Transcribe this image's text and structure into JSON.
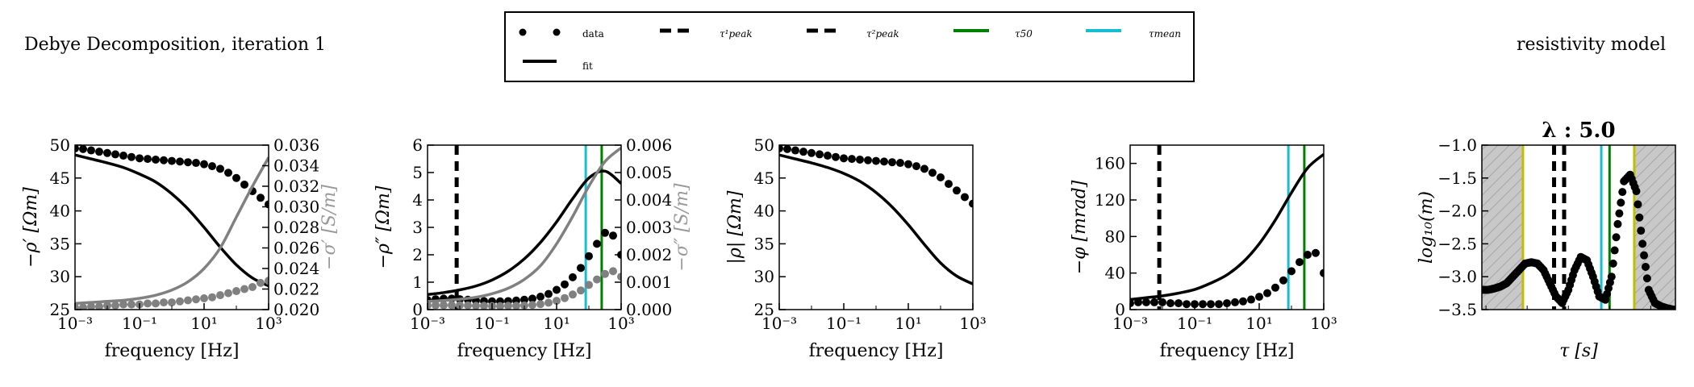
{
  "figure": {
    "left_title": "Debye Decomposition, iteration 1",
    "right_title": "resistivity model",
    "colors": {
      "data": "#000000",
      "data_gray": "#808080",
      "fit_gray": "#808080",
      "tau50": "#008000",
      "taumean": "#17becf",
      "yellow": "#bfbf00",
      "hatch": "#c8c8c8"
    }
  },
  "legend": {
    "items": [
      {
        "label": "data",
        "marker": "dots"
      },
      {
        "label": "τ¹peak",
        "marker": "dashed-black"
      },
      {
        "label": "τ²peak",
        "marker": "dashed-black"
      },
      {
        "label": "τ50",
        "marker": "green-line"
      },
      {
        "label": "τmean",
        "marker": "cyan-line"
      },
      {
        "label": "fit",
        "marker": "black-line"
      }
    ]
  },
  "chart_data": [
    {
      "type": "line",
      "xlabel": "frequency [Hz]",
      "ylabel": "−ρ′ [Ωm]",
      "y2label": "−σ′ [S/m]",
      "xscale": "log",
      "xlim": [
        0.001,
        1000
      ],
      "ylim": [
        25,
        50
      ],
      "y2lim": [
        0.02,
        0.036
      ],
      "xticks": [
        "10⁻³",
        "10⁻¹",
        "10¹",
        "10³"
      ],
      "yticks": [
        "25",
        "30",
        "35",
        "40",
        "45",
        "50"
      ],
      "y2ticks": [
        "0.020",
        "0.022",
        "0.024",
        "0.026",
        "0.028",
        "0.030",
        "0.032",
        "0.034",
        "0.036"
      ],
      "series": [
        {
          "name": "data",
          "axis": "left",
          "style": "dots",
          "color": "#000000",
          "x": [
            0.001,
            0.00178,
            0.00316,
            0.00562,
            0.01,
            0.0178,
            0.0316,
            0.0562,
            0.1,
            0.178,
            0.316,
            0.562,
            1,
            1.78,
            3.16,
            5.62,
            10,
            17.8,
            31.6,
            56.2,
            100,
            178,
            316,
            562,
            1000
          ],
          "y": [
            49.5,
            49.4,
            49.2,
            49.0,
            48.8,
            48.6,
            48.4,
            48.2,
            48.0,
            47.9,
            47.8,
            47.7,
            47.6,
            47.5,
            47.4,
            47.3,
            47.1,
            46.8,
            46.4,
            45.8,
            45.0,
            44.0,
            43.0,
            42.0,
            41.0
          ]
        },
        {
          "name": "fit",
          "axis": "left",
          "style": "line",
          "color": "#000000",
          "x": [
            0.001,
            0.00316,
            0.01,
            0.0316,
            0.1,
            0.316,
            1,
            3.16,
            10,
            31.6,
            100,
            316,
            1000
          ],
          "y": [
            48.5,
            47.9,
            47.3,
            46.6,
            45.6,
            44.4,
            42.6,
            40.3,
            37.5,
            34.5,
            31.8,
            29.8,
            28.6
          ]
        },
        {
          "name": "data-σ",
          "axis": "right",
          "style": "dots",
          "color": "#808080",
          "x": [
            0.001,
            0.00178,
            0.00316,
            0.00562,
            0.01,
            0.0178,
            0.0316,
            0.0562,
            0.1,
            0.178,
            0.316,
            0.562,
            1,
            1.78,
            3.16,
            5.62,
            10,
            17.8,
            31.6,
            56.2,
            100,
            178,
            316,
            562,
            1000
          ],
          "y": [
            0.0202,
            0.0202,
            0.0203,
            0.0203,
            0.0204,
            0.0204,
            0.0205,
            0.0205,
            0.0205,
            0.0206,
            0.0206,
            0.0207,
            0.0207,
            0.0208,
            0.0209,
            0.021,
            0.0211,
            0.0212,
            0.0214,
            0.0216,
            0.0218,
            0.022,
            0.0222,
            0.0226,
            0.0228
          ]
        },
        {
          "name": "fit-σ",
          "axis": "right",
          "style": "line",
          "color": "#808080",
          "x": [
            0.001,
            0.00316,
            0.01,
            0.0316,
            0.1,
            0.316,
            1,
            3.16,
            10,
            31.6,
            100,
            316,
            1000
          ],
          "y": [
            0.0206,
            0.0207,
            0.0208,
            0.0209,
            0.0211,
            0.0214,
            0.0219,
            0.0227,
            0.024,
            0.026,
            0.029,
            0.032,
            0.0348
          ]
        }
      ],
      "vlines": []
    },
    {
      "type": "line",
      "xlabel": "frequency [Hz]",
      "ylabel": "−ρ″ [Ωm]",
      "y2label": "−σ″ [S/m]",
      "xscale": "log",
      "xlim": [
        0.001,
        1000
      ],
      "ylim": [
        0,
        6
      ],
      "y2lim": [
        0,
        0.006
      ],
      "xticks": [
        "10⁻³",
        "10⁻¹",
        "10¹",
        "10³"
      ],
      "yticks": [
        "0",
        "1",
        "2",
        "3",
        "4",
        "5",
        "6"
      ],
      "y2ticks": [
        "0.000",
        "0.001",
        "0.002",
        "0.003",
        "0.004",
        "0.005",
        "0.006"
      ],
      "series": [
        {
          "name": "data",
          "axis": "left",
          "style": "dots",
          "color": "#000000",
          "x": [
            0.001,
            0.00178,
            0.00316,
            0.00562,
            0.01,
            0.0178,
            0.0316,
            0.0562,
            0.1,
            0.178,
            0.316,
            0.562,
            1,
            1.78,
            3.16,
            5.62,
            10,
            17.8,
            31.6,
            56.2,
            100,
            178,
            316,
            562,
            1000
          ],
          "y": [
            0.35,
            0.38,
            0.4,
            0.4,
            0.38,
            0.36,
            0.33,
            0.31,
            0.3,
            0.3,
            0.31,
            0.33,
            0.36,
            0.4,
            0.47,
            0.57,
            0.72,
            0.92,
            1.18,
            1.52,
            1.95,
            2.4,
            2.8,
            2.7,
            2.0
          ]
        },
        {
          "name": "fit",
          "axis": "left",
          "style": "line",
          "color": "#000000",
          "x": [
            0.001,
            0.00316,
            0.01,
            0.0316,
            0.1,
            0.316,
            1,
            3.16,
            10,
            31.6,
            100,
            316,
            1000
          ],
          "y": [
            0.55,
            0.62,
            0.72,
            0.86,
            1.08,
            1.4,
            1.85,
            2.45,
            3.2,
            4.05,
            4.8,
            5.05,
            4.6
          ]
        },
        {
          "name": "data-σ",
          "axis": "right",
          "style": "dots",
          "color": "#808080",
          "x": [
            0.001,
            0.00178,
            0.00316,
            0.00562,
            0.01,
            0.0178,
            0.0316,
            0.0562,
            0.1,
            0.178,
            0.316,
            0.562,
            1,
            1.78,
            3.16,
            5.62,
            10,
            17.8,
            31.6,
            56.2,
            100,
            178,
            316,
            562,
            1000
          ],
          "y": [
            0.00015,
            0.00016,
            0.00016,
            0.00016,
            0.00016,
            0.00015,
            0.00014,
            0.00014,
            0.00013,
            0.00013,
            0.00014,
            0.00014,
            0.00015,
            0.00017,
            0.0002,
            0.00025,
            0.00032,
            0.00042,
            0.00055,
            0.0007,
            0.0009,
            0.0011,
            0.0013,
            0.0014,
            0.0012
          ]
        },
        {
          "name": "fit-σ",
          "axis": "right",
          "style": "line",
          "color": "#808080",
          "x": [
            0.001,
            0.00316,
            0.01,
            0.0316,
            0.1,
            0.316,
            1,
            3.16,
            10,
            31.6,
            100,
            316,
            1000
          ],
          "y": [
            0.0003,
            0.00033,
            0.00038,
            0.00045,
            0.00058,
            0.00078,
            0.0011,
            0.0016,
            0.0024,
            0.0034,
            0.0045,
            0.0054,
            0.0059
          ]
        }
      ],
      "vlines": [
        {
          "x": 0.008,
          "style": "dashed",
          "color": "#000000"
        },
        {
          "x": 80,
          "style": "solid",
          "color": "#17becf"
        },
        {
          "x": 250,
          "style": "solid",
          "color": "#008000"
        }
      ]
    },
    {
      "type": "line",
      "xlabel": "frequency [Hz]",
      "ylabel": "|ρ| [Ωm]",
      "xscale": "log",
      "xlim": [
        0.001,
        1000
      ],
      "ylim": [
        25,
        50
      ],
      "xticks": [
        "10⁻³",
        "10⁻¹",
        "10¹",
        "10³"
      ],
      "yticks": [
        "25",
        "30",
        "35",
        "40",
        "45",
        "50"
      ],
      "series": [
        {
          "name": "data",
          "axis": "left",
          "style": "dots",
          "color": "#000000",
          "x": [
            0.001,
            0.00178,
            0.00316,
            0.00562,
            0.01,
            0.0178,
            0.0316,
            0.0562,
            0.1,
            0.178,
            0.316,
            0.562,
            1,
            1.78,
            3.16,
            5.62,
            10,
            17.8,
            31.6,
            56.2,
            100,
            178,
            316,
            562,
            1000
          ],
          "y": [
            49.5,
            49.4,
            49.2,
            49.0,
            48.8,
            48.6,
            48.4,
            48.2,
            48.0,
            47.9,
            47.8,
            47.7,
            47.6,
            47.5,
            47.4,
            47.3,
            47.1,
            46.8,
            46.4,
            45.8,
            45.1,
            44.1,
            43.1,
            42.1,
            41.1
          ]
        },
        {
          "name": "fit",
          "axis": "left",
          "style": "line",
          "color": "#000000",
          "x": [
            0.001,
            0.00316,
            0.01,
            0.0316,
            0.1,
            0.316,
            1,
            3.16,
            10,
            31.6,
            100,
            316,
            1000
          ],
          "y": [
            48.5,
            47.9,
            47.3,
            46.6,
            45.7,
            44.5,
            42.8,
            40.6,
            37.9,
            34.9,
            32.1,
            30.1,
            28.9
          ]
        }
      ],
      "vlines": []
    },
    {
      "type": "line",
      "xlabel": "frequency [Hz]",
      "ylabel": "−φ [mrad]",
      "xscale": "log",
      "xlim": [
        0.001,
        1000
      ],
      "ylim": [
        0,
        180
      ],
      "xticks": [
        "10⁻³",
        "10⁻¹",
        "10¹",
        "10³"
      ],
      "yticks": [
        "0",
        "40",
        "80",
        "120",
        "160"
      ],
      "series": [
        {
          "name": "data",
          "axis": "left",
          "style": "dots",
          "color": "#000000",
          "x": [
            0.001,
            0.00178,
            0.00316,
            0.00562,
            0.01,
            0.0178,
            0.0316,
            0.0562,
            0.1,
            0.178,
            0.316,
            0.562,
            1,
            1.78,
            3.16,
            5.62,
            10,
            17.8,
            31.6,
            56.2,
            100,
            178,
            316,
            562,
            1000
          ],
          "y": [
            7,
            8,
            8,
            8,
            8,
            7,
            7,
            6,
            6,
            6,
            6,
            6,
            7,
            8,
            9,
            11,
            14,
            18,
            24,
            32,
            42,
            52,
            60,
            62,
            40
          ]
        },
        {
          "name": "fit",
          "axis": "left",
          "style": "line",
          "color": "#000000",
          "x": [
            0.001,
            0.00316,
            0.01,
            0.0316,
            0.1,
            0.316,
            1,
            3.16,
            10,
            31.6,
            100,
            316,
            1000
          ],
          "y": [
            11,
            13,
            15,
            18,
            22,
            29,
            38,
            52,
            72,
            98,
            128,
            155,
            170
          ]
        }
      ],
      "vlines": [
        {
          "x": 0.008,
          "style": "dashed",
          "color": "#000000"
        },
        {
          "x": 80,
          "style": "solid",
          "color": "#17becf"
        },
        {
          "x": 250,
          "style": "solid",
          "color": "#008000"
        }
      ]
    },
    {
      "type": "scatter",
      "title": "λ : 5.0",
      "xlabel": "τ [s]",
      "ylabel": "log₁₀(m)",
      "xscale": "log",
      "xlim": [
        7.94e-05,
        3.98
      ],
      "ylim": [
        -3.5,
        -1.0
      ],
      "xticks": [],
      "yticks": [
        "−3.5",
        "−3.0",
        "−2.5",
        "−2.0",
        "−1.5",
        "−1.0"
      ],
      "series": [
        {
          "name": "model",
          "axis": "left",
          "style": "dots",
          "color": "#000000",
          "x": [
            7.94e-05,
            0.000112,
            0.000158,
            0.000224,
            0.000316,
            0.000447,
            0.000631,
            0.000891,
            0.00126,
            0.00178,
            0.00251,
            0.00355,
            0.00501,
            0.00708,
            0.01,
            0.0141,
            0.02,
            0.0282,
            0.0398,
            0.0562,
            0.0794,
            0.112,
            0.158,
            0.224,
            0.316,
            0.447,
            0.631,
            0.891,
            1.26,
            1.78,
            2.51,
            3.55
          ],
          "y": [
            -3.2,
            -3.2,
            -3.18,
            -3.15,
            -3.1,
            -3.0,
            -2.9,
            -2.8,
            -2.78,
            -2.8,
            -2.9,
            -3.1,
            -3.3,
            -3.4,
            -3.2,
            -2.9,
            -2.7,
            -2.75,
            -3.0,
            -3.3,
            -3.35,
            -3.0,
            -2.2,
            -1.55,
            -1.45,
            -1.7,
            -2.5,
            -3.2,
            -3.4,
            -3.45,
            -3.48,
            -3.5
          ]
        }
      ],
      "vlines": [
        {
          "x": 0.00079,
          "style": "solid",
          "color": "#bfbf00"
        },
        {
          "x": 0.0079,
          "style": "dashed",
          "color": "#000000"
        },
        {
          "x": 0.0045,
          "style": "dashed",
          "color": "#000000"
        },
        {
          "x": 0.063,
          "style": "solid",
          "color": "#17becf"
        },
        {
          "x": 0.1,
          "style": "solid",
          "color": "#008000"
        },
        {
          "x": 0.398,
          "style": "solid",
          "color": "#bfbf00"
        }
      ],
      "shaded": [
        [
          7.94e-05,
          0.00079
        ],
        [
          0.398,
          3.98
        ]
      ]
    }
  ]
}
